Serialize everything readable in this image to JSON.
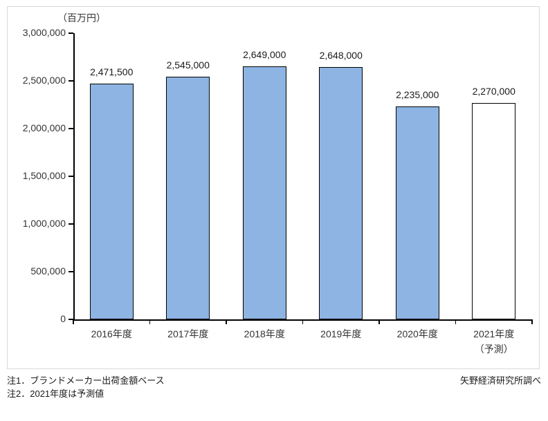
{
  "chart_data": {
    "type": "bar",
    "title": "",
    "unit_label": "（百万円）",
    "categories": [
      "2016年度",
      "2017年度",
      "2018年度",
      "2019年度",
      "2020年度",
      "2021年度"
    ],
    "category_sublabels": [
      "",
      "",
      "",
      "",
      "",
      "（予測）"
    ],
    "values": [
      2471500,
      2545000,
      2649000,
      2648000,
      2235000,
      2270000
    ],
    "value_labels": [
      "2,471,500",
      "2,545,000",
      "2,649,000",
      "2,648,000",
      "2,235,000",
      "2,270,000"
    ],
    "bar_styles": [
      {
        "fill": "#8DB4E2",
        "stroke": "#000000"
      },
      {
        "fill": "#8DB4E2",
        "stroke": "#000000"
      },
      {
        "fill": "#8DB4E2",
        "stroke": "#000000"
      },
      {
        "fill": "#8DB4E2",
        "stroke": "#000000"
      },
      {
        "fill": "#8DB4E2",
        "stroke": "#000000"
      },
      {
        "fill": "#FFFFFF",
        "stroke": "#000000"
      }
    ],
    "ylim": [
      0,
      3000000
    ],
    "ytick_interval": 500000,
    "ytick_labels": [
      "0",
      "500,000",
      "1,000,000",
      "1,500,000",
      "2,000,000",
      "2,500,000",
      "3,000,000"
    ],
    "grid": false,
    "legend": null
  },
  "notes": {
    "note1": "注1．ブランドメーカー出荷金額ベース",
    "note2": "注2．2021年度は予測値"
  },
  "source": "矢野経済研究所調べ"
}
